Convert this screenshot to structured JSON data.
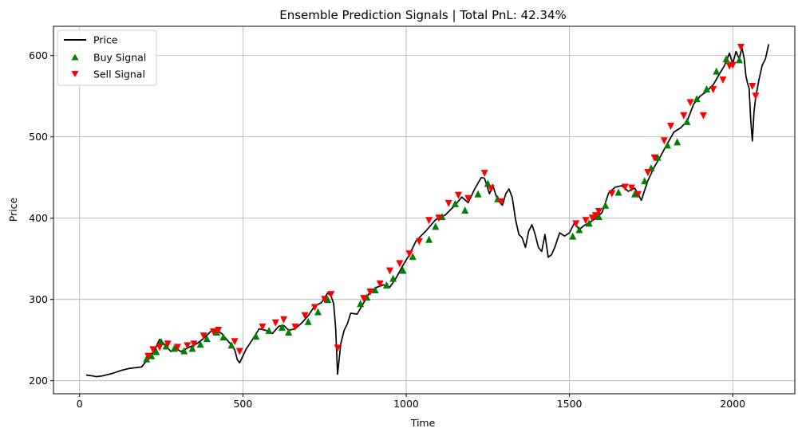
{
  "chart_data": {
    "type": "line",
    "title": "Ensemble Prediction Signals | Total PnL: 42.34%",
    "xlabel": "Time",
    "ylabel": "Price",
    "xlim": [
      -80,
      2190
    ],
    "ylim": [
      184,
      636
    ],
    "xticks": [
      0,
      500,
      1000,
      1500,
      2000
    ],
    "yticks": [
      200,
      300,
      400,
      500,
      600
    ],
    "grid": true,
    "legend_position": "top-left",
    "series": [
      {
        "name": "Price",
        "kind": "line",
        "color": "#000000",
        "x": [
          20,
          40,
          50,
          70,
          100,
          130,
          150,
          170,
          190,
          200,
          215,
          230,
          245,
          255,
          265,
          280,
          295,
          310,
          320,
          340,
          360,
          380,
          395,
          405,
          420,
          435,
          450,
          465,
          475,
          483,
          490,
          510,
          530,
          550,
          570,
          590,
          610,
          625,
          640,
          660,
          680,
          700,
          720,
          740,
          760,
          770,
          778,
          784,
          790,
          800,
          810,
          820,
          830,
          850,
          870,
          890,
          910,
          930,
          950,
          970,
          990,
          1010,
          1030,
          1060,
          1090,
          1120,
          1150,
          1170,
          1190,
          1210,
          1230,
          1240,
          1255,
          1265,
          1275,
          1285,
          1295,
          1305,
          1315,
          1325,
          1335,
          1345,
          1355,
          1365,
          1375,
          1385,
          1395,
          1405,
          1415,
          1425,
          1435,
          1445,
          1455,
          1470,
          1485,
          1500,
          1515,
          1530,
          1545,
          1560,
          1580,
          1600,
          1620,
          1640,
          1660,
          1680,
          1700,
          1720,
          1740,
          1760,
          1780,
          1800,
          1820,
          1840,
          1860,
          1880,
          1900,
          1920,
          1940,
          1960,
          1975,
          1990,
          2000,
          2010,
          2020,
          2028,
          2035,
          2040,
          2045,
          2050,
          2055,
          2060,
          2065,
          2070,
          2080,
          2090,
          2100,
          2110
        ],
        "values": [
          207,
          206,
          205,
          206,
          209,
          213,
          215,
          216,
          217,
          222,
          228,
          238,
          251,
          247,
          242,
          236,
          240,
          236,
          238,
          242,
          246,
          252,
          258,
          262,
          262,
          258,
          251,
          244,
          238,
          226,
          222,
          239,
          251,
          264,
          262,
          258,
          267,
          268,
          262,
          264,
          271,
          280,
          292,
          296,
          308,
          304,
          295,
          265,
          208,
          246,
          262,
          270,
          283,
          282,
          296,
          310,
          315,
          318,
          315,
          327,
          342,
          355,
          372,
          384,
          398,
          404,
          416,
          426,
          419,
          436,
          450,
          449,
          430,
          441,
          428,
          420,
          416,
          430,
          436,
          425,
          398,
          380,
          376,
          364,
          384,
          392,
          380,
          364,
          359,
          380,
          352,
          355,
          364,
          382,
          378,
          382,
          394,
          386,
          391,
          394,
          400,
          407,
          431,
          438,
          440,
          433,
          437,
          422,
          446,
          463,
          477,
          492,
          506,
          511,
          519,
          540,
          550,
          556,
          564,
          578,
          588,
          603,
          590,
          605,
          596,
          610,
          596,
          576,
          566,
          560,
          520,
          495,
          530,
          548,
          570,
          588,
          596,
          614
        ]
      },
      {
        "name": "Buy Signal",
        "kind": "marker",
        "marker": "triangle-up",
        "color": "#008000",
        "x": [
          205,
          220,
          235,
          250,
          265,
          290,
          320,
          345,
          370,
          390,
          420,
          440,
          465,
          540,
          580,
          620,
          640,
          700,
          730,
          760,
          860,
          880,
          905,
          940,
          960,
          990,
          1020,
          1070,
          1090,
          1110,
          1150,
          1180,
          1220,
          1250,
          1280,
          1510,
          1530,
          1560,
          1590,
          1610,
          1650,
          1700,
          1730,
          1750,
          1770,
          1800,
          1830,
          1860,
          1890,
          1920,
          1950,
          1980,
          2020
        ],
        "values": [
          227,
          231,
          236,
          248,
          243,
          240,
          237,
          240,
          245,
          252,
          260,
          254,
          244,
          255,
          262,
          266,
          260,
          273,
          285,
          300,
          295,
          303,
          312,
          318,
          326,
          336,
          353,
          374,
          390,
          402,
          418,
          410,
          430,
          443,
          424,
          378,
          386,
          394,
          402,
          416,
          432,
          430,
          446,
          462,
          475,
          490,
          494,
          519,
          547,
          559,
          581,
          596,
          595
        ]
      },
      {
        "name": "Sell Signal",
        "kind": "marker",
        "marker": "triangle-down",
        "color": "#ff0000",
        "x": [
          210,
          225,
          245,
          270,
          300,
          330,
          350,
          380,
          410,
          425,
          475,
          490,
          560,
          600,
          625,
          660,
          690,
          720,
          750,
          770,
          790,
          870,
          890,
          920,
          950,
          980,
          1010,
          1040,
          1070,
          1100,
          1130,
          1160,
          1190,
          1240,
          1260,
          1290,
          1520,
          1550,
          1570,
          1580,
          1590,
          1630,
          1670,
          1690,
          1710,
          1740,
          1760,
          1790,
          1810,
          1850,
          1870,
          1910,
          1940,
          1970,
          1990,
          2000,
          2025,
          2060,
          2070
        ],
        "values": [
          230,
          238,
          241,
          245,
          241,
          243,
          245,
          255,
          260,
          262,
          248,
          236,
          266,
          271,
          275,
          266,
          280,
          290,
          300,
          306,
          240,
          301,
          309,
          319,
          335,
          344,
          356,
          371,
          397,
          400,
          418,
          428,
          424,
          455,
          436,
          420,
          393,
          397,
          400,
          403,
          408,
          430,
          438,
          437,
          429,
          456,
          474,
          495,
          513,
          526,
          542,
          526,
          558,
          570,
          587,
          588,
          610,
          562,
          550
        ]
      }
    ]
  }
}
